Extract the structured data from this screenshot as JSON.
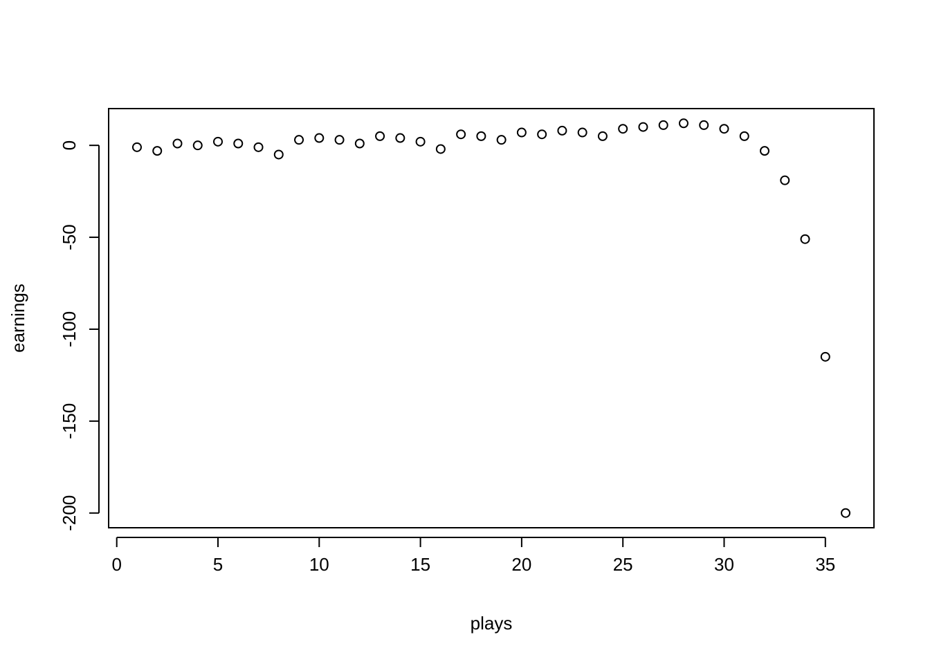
{
  "chart_data": {
    "type": "scatter",
    "title": "",
    "xlabel": "plays",
    "ylabel": "earnings",
    "xlim": [
      -0.4,
      37.4
    ],
    "ylim": [
      -208,
      20
    ],
    "xticks": [
      0,
      5,
      10,
      15,
      20,
      25,
      30,
      35
    ],
    "yticks": [
      0,
      -50,
      -100,
      -150,
      -200
    ],
    "grid": false,
    "legend": "none",
    "marker": "open-circle",
    "colors": {
      "marker": "#000000",
      "axis": "#000000",
      "background": "#ffffff"
    },
    "x": [
      1,
      2,
      3,
      4,
      5,
      6,
      7,
      8,
      9,
      10,
      11,
      12,
      13,
      14,
      15,
      16,
      17,
      18,
      19,
      20,
      21,
      22,
      23,
      24,
      25,
      26,
      27,
      28,
      29,
      30,
      31,
      32,
      33,
      34,
      35,
      36
    ],
    "y": [
      -1,
      -3,
      1,
      0,
      2,
      1,
      -1,
      -5,
      3,
      4,
      3,
      1,
      5,
      4,
      2,
      -2,
      6,
      5,
      3,
      7,
      6,
      8,
      7,
      5,
      9,
      10,
      11,
      12,
      11,
      9,
      5,
      -3,
      -19,
      -51,
      -115,
      -200
    ]
  }
}
